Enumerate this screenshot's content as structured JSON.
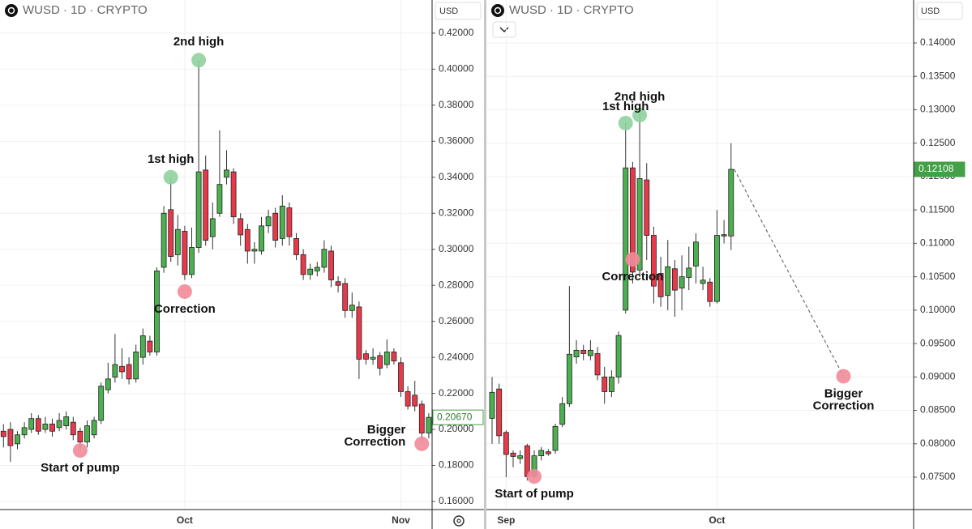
{
  "chart_data": [
    {
      "type": "candlestick",
      "title": "WUSD · 1D · CRYPTO",
      "currency": "USD",
      "up_color": "#4caf50",
      "down_color": "#e8394b",
      "grid": true,
      "ylim": [
        0.1555,
        0.4384
      ],
      "yticks": [
        {
          "value": 0.42,
          "label": "0.42000"
        },
        {
          "value": 0.4,
          "label": "0.40000"
        },
        {
          "value": 0.38,
          "label": "0.38000"
        },
        {
          "value": 0.36,
          "label": "0.36000"
        },
        {
          "value": 0.34,
          "label": "0.34000"
        },
        {
          "value": 0.32,
          "label": "0.32000"
        },
        {
          "value": 0.3,
          "label": "0.30000"
        },
        {
          "value": 0.28,
          "label": "0.28000"
        },
        {
          "value": 0.26,
          "label": "0.26000"
        },
        {
          "value": 0.24,
          "label": "0.24000"
        },
        {
          "value": 0.22,
          "label": "0.22000"
        },
        {
          "value": 0.2,
          "label": "0.20000"
        },
        {
          "value": 0.18,
          "label": "0.18000"
        },
        {
          "value": 0.16,
          "label": "0.16000"
        }
      ],
      "categories": [
        null,
        null,
        null,
        null,
        null,
        null,
        null,
        null,
        null,
        null,
        null,
        null,
        null,
        null,
        null,
        null,
        null,
        null,
        null,
        null,
        null,
        null,
        null,
        null,
        null,
        null,
        "Oct",
        null,
        null,
        null,
        null,
        null,
        null,
        null,
        null,
        null,
        null,
        null,
        null,
        null,
        null,
        null,
        null,
        null,
        null,
        null,
        null,
        null,
        null,
        null,
        null,
        null,
        null,
        null,
        null,
        null,
        null,
        "Nov",
        null,
        null,
        null,
        null
      ],
      "open": [
        0.199,
        0.2,
        0.192,
        0.197,
        0.2,
        0.206,
        0.2,
        0.203,
        0.201,
        0.202,
        0.204,
        0.199,
        0.193,
        0.197,
        0.205,
        0.222,
        0.229,
        0.235,
        0.236,
        0.228,
        0.24,
        0.249,
        0.243,
        0.29,
        0.322,
        0.297,
        0.31,
        0.286,
        0.301,
        0.344,
        0.307,
        0.32,
        0.34,
        0.343,
        0.317,
        0.311,
        0.299,
        0.299,
        0.313,
        0.32,
        0.306,
        0.323,
        0.306,
        0.297,
        0.286,
        0.288,
        0.29,
        0.299,
        0.282,
        0.281,
        0.266,
        0.268,
        0.242,
        0.239,
        0.241,
        0.236,
        0.243,
        0.237,
        0.221,
        0.219,
        0.214,
        0.198
      ],
      "high": [
        0.203,
        0.204,
        0.199,
        0.204,
        0.209,
        0.208,
        0.207,
        0.206,
        0.209,
        0.21,
        0.207,
        0.201,
        0.205,
        0.207,
        0.226,
        0.237,
        0.253,
        0.245,
        0.24,
        0.247,
        0.256,
        0.252,
        0.29,
        0.324,
        0.34,
        0.319,
        0.313,
        0.312,
        0.405,
        0.352,
        0.326,
        0.366,
        0.355,
        0.345,
        0.32,
        0.314,
        0.304,
        0.318,
        0.322,
        0.323,
        0.33,
        0.326,
        0.309,
        0.3,
        0.292,
        0.293,
        0.305,
        0.302,
        0.285,
        0.284,
        0.276,
        0.271,
        0.244,
        0.245,
        0.243,
        0.25,
        0.245,
        0.24,
        0.224,
        0.227,
        0.216,
        0.209
      ],
      "low": [
        0.19,
        0.182,
        0.189,
        0.195,
        0.198,
        0.197,
        0.198,
        0.196,
        0.199,
        0.2,
        0.194,
        0.189,
        0.19,
        0.195,
        0.203,
        0.22,
        0.226,
        0.228,
        0.225,
        0.226,
        0.236,
        0.241,
        0.241,
        0.287,
        0.293,
        0.291,
        0.283,
        0.284,
        0.298,
        0.302,
        0.3,
        0.318,
        0.336,
        0.314,
        0.302,
        0.292,
        0.292,
        0.297,
        0.309,
        0.301,
        0.302,
        0.302,
        0.294,
        0.283,
        0.283,
        0.285,
        0.287,
        0.279,
        0.276,
        0.262,
        0.262,
        0.228,
        0.236,
        0.236,
        0.23,
        0.234,
        0.236,
        0.218,
        0.211,
        0.21,
        0.193,
        0.195
      ],
      "close": [
        0.196,
        0.191,
        0.197,
        0.201,
        0.206,
        0.199,
        0.203,
        0.199,
        0.205,
        0.207,
        0.197,
        0.193,
        0.202,
        0.205,
        0.224,
        0.228,
        0.236,
        0.232,
        0.228,
        0.243,
        0.252,
        0.243,
        0.288,
        0.32,
        0.296,
        0.311,
        0.286,
        0.301,
        0.343,
        0.305,
        0.317,
        0.336,
        0.344,
        0.318,
        0.308,
        0.299,
        0.3,
        0.313,
        0.318,
        0.305,
        0.324,
        0.307,
        0.297,
        0.286,
        0.289,
        0.29,
        0.3,
        0.283,
        0.28,
        0.266,
        0.269,
        0.239,
        0.239,
        0.24,
        0.234,
        0.243,
        0.238,
        0.221,
        0.213,
        0.213,
        0.198,
        0.2067
      ],
      "last_price": {
        "value": 0.2067,
        "label": "0.20670",
        "style": "outline"
      },
      "annotations": [
        {
          "lines": [
            "2nd high"
          ],
          "index": 28,
          "price": 0.405,
          "color": "#8fd19e",
          "side": "above"
        },
        {
          "lines": [
            "1st high"
          ],
          "index": 24,
          "price": 0.34,
          "color": "#8fd19e",
          "side": "above"
        },
        {
          "lines": [
            "Correction"
          ],
          "index": 26,
          "price": 0.2765,
          "color": "#f28b99",
          "side": "below"
        },
        {
          "lines": [
            "Start of pump"
          ],
          "index": 11,
          "price": 0.1883,
          "color": "#f28b99",
          "side": "below"
        },
        {
          "lines": [
            "Bigger",
            "Correction"
          ],
          "index": 60,
          "price": 0.192,
          "color": "#f28b99",
          "side": "above-left"
        }
      ]
    },
    {
      "type": "candlestick",
      "title": "WUSD · 1D · CRYPTO",
      "currency": "USD",
      "up_color": "#4caf50",
      "down_color": "#e8394b",
      "grid": true,
      "ylim": [
        0.07015,
        0.14643
      ],
      "yticks": [
        {
          "value": 0.14,
          "label": "0.14000"
        },
        {
          "value": 0.135,
          "label": "0.13500"
        },
        {
          "value": 0.13,
          "label": "0.13000"
        },
        {
          "value": 0.125,
          "label": "0.12500"
        },
        {
          "value": 0.12,
          "label": "0.12000"
        },
        {
          "value": 0.115,
          "label": "0.11500"
        },
        {
          "value": 0.11,
          "label": "0.11000"
        },
        {
          "value": 0.105,
          "label": "0.10500"
        },
        {
          "value": 0.1,
          "label": "0.10000"
        },
        {
          "value": 0.095,
          "label": "0.09500"
        },
        {
          "value": 0.09,
          "label": "0.09000"
        },
        {
          "value": 0.085,
          "label": "0.08500"
        },
        {
          "value": 0.08,
          "label": "0.08000"
        },
        {
          "value": 0.075,
          "label": "0.07500"
        }
      ],
      "categories": [
        null,
        null,
        "Sep",
        null,
        null,
        null,
        null,
        null,
        null,
        null,
        null,
        null,
        null,
        null,
        null,
        null,
        null,
        null,
        null,
        null,
        null,
        null,
        null,
        null,
        null,
        null,
        null,
        null,
        null,
        null,
        null,
        null,
        "Oct",
        null,
        null
      ],
      "open": [
        0.0838,
        0.0882,
        0.0817,
        0.0786,
        0.0778,
        0.0797,
        0.0752,
        0.0782,
        0.0788,
        0.079,
        0.0829,
        0.086,
        0.093,
        0.094,
        0.0932,
        0.0935,
        0.09,
        0.0878,
        0.09,
        0.1,
        0.1213,
        0.106,
        0.1195,
        0.1112,
        0.1055,
        0.1022,
        0.1062,
        0.1033,
        0.1049,
        0.1066,
        0.104,
        0.1042,
        0.1013,
        0.1113,
        0.1111
      ],
      "high": [
        0.09,
        0.089,
        0.082,
        0.079,
        0.079,
        0.08,
        0.079,
        0.0795,
        0.0792,
        0.083,
        0.087,
        0.1036,
        0.0955,
        0.0948,
        0.0955,
        0.0945,
        0.0915,
        0.091,
        0.0968,
        0.1281,
        0.1222,
        0.1293,
        0.122,
        0.1125,
        0.108,
        0.1105,
        0.1075,
        0.1082,
        0.1095,
        0.1115,
        0.1065,
        0.1048,
        0.115,
        0.1135,
        0.125
      ],
      "low": [
        0.08,
        0.08,
        0.075,
        0.0765,
        0.077,
        0.0745,
        0.0748,
        0.0775,
        0.0782,
        0.0785,
        0.0825,
        0.0855,
        0.092,
        0.0925,
        0.0925,
        0.0895,
        0.086,
        0.087,
        0.089,
        0.0995,
        0.104,
        0.105,
        0.1075,
        0.101,
        0.1005,
        0.1,
        0.099,
        0.1,
        0.103,
        0.104,
        0.103,
        0.1005,
        0.101,
        0.11,
        0.109
      ],
      "close": [
        0.0877,
        0.0812,
        0.0784,
        0.0781,
        0.0782,
        0.0751,
        0.0782,
        0.079,
        0.0785,
        0.0826,
        0.086,
        0.0934,
        0.094,
        0.0935,
        0.094,
        0.0903,
        0.0878,
        0.09,
        0.0962,
        0.1213,
        0.1057,
        0.1197,
        0.1112,
        0.1036,
        0.102,
        0.1065,
        0.103,
        0.105,
        0.1063,
        0.1102,
        0.1045,
        0.1013,
        0.1112,
        0.1111,
        0.12108
      ],
      "last_price": {
        "value": 0.12108,
        "label": "0.12108",
        "style": "filled"
      },
      "annotations": [
        {
          "lines": [
            "2nd high"
          ],
          "index": 21,
          "price": 0.1292,
          "color": "#8fd19e",
          "side": "above"
        },
        {
          "lines": [
            "1st high"
          ],
          "index": 19,
          "price": 0.128,
          "color": "#8fd19e",
          "side": "above-far"
        },
        {
          "lines": [
            "Correction"
          ],
          "index": 20,
          "price": 0.1076,
          "color": "#f28b99",
          "side": "below"
        },
        {
          "lines": [
            "Start of pump"
          ],
          "index": 6,
          "price": 0.0751,
          "color": "#f28b99",
          "side": "below"
        },
        {
          "lines": [
            "Bigger",
            "Correction"
          ],
          "index": 50,
          "price": 0.0901,
          "color": "#f28b99",
          "side": "below"
        }
      ]
    }
  ]
}
